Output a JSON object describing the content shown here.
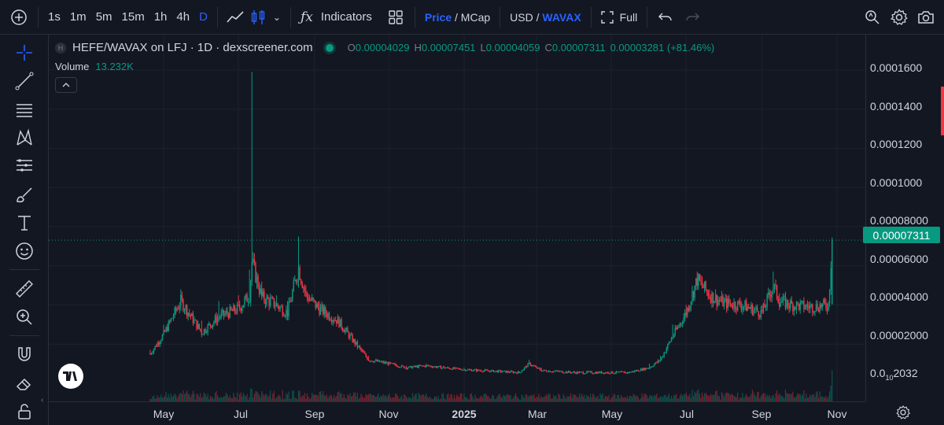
{
  "toolbar": {
    "add_symbol_icon": "plus-circle",
    "timeframes": [
      "1s",
      "1m",
      "5m",
      "15m",
      "1h",
      "4h",
      "D"
    ],
    "active_timeframe": "D",
    "indicators_label": "Indicators",
    "price_label": "Price",
    "price_separator": " / ",
    "mcap_label": "MCap",
    "usd_label": "USD",
    "currency_separator": " / ",
    "wavax_label": "WAVAX",
    "full_label": "Full"
  },
  "legend": {
    "symbol_badge": "H",
    "title": "HEFE/WAVAX on LFJ · 1D · dexscreener.com",
    "open_label": "O",
    "open": "0.00004029",
    "high_label": "H",
    "high": "0.00007451",
    "low_label": "L",
    "low": "0.00004059",
    "close_label": "C",
    "close": "0.00007311",
    "change": "0.00003281 (+81.46%)",
    "volume_label": "Volume",
    "volume_value": "13.232K"
  },
  "price_axis": {
    "labels": [
      "0.0001600",
      "0.0001400",
      "0.0001200",
      "0.0001000",
      "0.00008000",
      "0.00006000",
      "0.00004000",
      "0.00002000"
    ],
    "bottom_label_prefix": "0.0",
    "bottom_label_sub": "10",
    "bottom_label_suffix": "2032",
    "current_price": "0.00007311"
  },
  "time_axis": {
    "labels": [
      "May",
      "Jul",
      "Sep",
      "Nov",
      "2025",
      "Mar",
      "May",
      "Jul",
      "Sep",
      "Nov"
    ]
  },
  "colors": {
    "background": "#131722",
    "up": "#089981",
    "down": "#f23645",
    "accent": "#2962ff",
    "grid": "#1e222d"
  },
  "chart_data": {
    "type": "candlestick",
    "x": [
      "2024-04-20",
      "2024-05-01",
      "2024-05-15",
      "2024-06-01",
      "2024-06-15",
      "2024-07-01",
      "2024-07-10",
      "2024-07-12",
      "2024-07-20",
      "2024-08-01",
      "2024-08-10",
      "2024-08-19",
      "2024-08-25",
      "2024-09-05",
      "2024-09-20",
      "2024-10-01",
      "2024-10-15",
      "2024-11-01",
      "2024-11-15",
      "2024-12-01",
      "2024-12-15",
      "2025-01-01",
      "2025-01-15",
      "2025-02-01",
      "2025-02-15",
      "2025-02-23",
      "2025-03-05",
      "2025-03-20",
      "2025-04-01",
      "2025-04-15",
      "2025-05-01",
      "2025-05-15",
      "2025-06-01",
      "2025-06-10",
      "2025-06-20",
      "2025-07-01",
      "2025-07-10",
      "2025-07-20",
      "2025-08-01",
      "2025-08-15",
      "2025-09-01",
      "2025-09-10",
      "2025-09-15",
      "2025-09-25",
      "2025-10-10",
      "2025-10-25",
      "2025-10-28"
    ],
    "close": [
      1.5e-05,
      2.5e-05,
      4.2e-05,
      2.6e-05,
      3.4e-05,
      3.8e-05,
      4.5e-05,
      6.2e-05,
      4.4e-05,
      4e-05,
      3.6e-05,
      5.9e-05,
      4.5e-05,
      3.8e-05,
      3.2e-05,
      2.3e-05,
      1.2e-05,
      1e-05,
      8e-06,
      9e-06,
      8e-06,
      7e-06,
      6.5e-06,
      6e-06,
      5.5e-06,
      1e-05,
      6.5e-06,
      6e-06,
      5.5e-06,
      5.5e-06,
      5.5e-06,
      5.5e-06,
      8e-06,
      1.2e-05,
      2.4e-05,
      3.6e-05,
      5.3e-05,
      4.5e-05,
      4.1e-05,
      4e-05,
      3.6e-05,
      5e-05,
      4.2e-05,
      4e-05,
      3.9e-05,
      4e-05,
      7.31e-05
    ],
    "high": [
      1.7e-05,
      3e-05,
      4.8e-05,
      3.2e-05,
      4.2e-05,
      4.5e-05,
      5.8e-05,
      0.000159,
      5.2e-05,
      4.5e-05,
      4.2e-05,
      7.5e-05,
      5e-05,
      4.2e-05,
      3.5e-05,
      2.6e-05,
      1.4e-05,
      1.1e-05,
      9e-06,
      1e-05,
      9e-06,
      8e-06,
      7e-06,
      6.5e-06,
      6e-06,
      1.2e-05,
      8e-06,
      6.5e-06,
      6e-06,
      6e-06,
      6e-06,
      6e-06,
      1e-05,
      1.4e-05,
      3e-05,
      4e-05,
      5.7e-05,
      4.8e-05,
      4.3e-05,
      4.2e-05,
      4e-05,
      5.7e-05,
      4.6e-05,
      4.2e-05,
      4.1e-05,
      4.2e-05,
      7.45e-05
    ],
    "volume_label": "Volume 13.232K",
    "ylim": [
      0,
      0.000175
    ],
    "grid": true
  }
}
